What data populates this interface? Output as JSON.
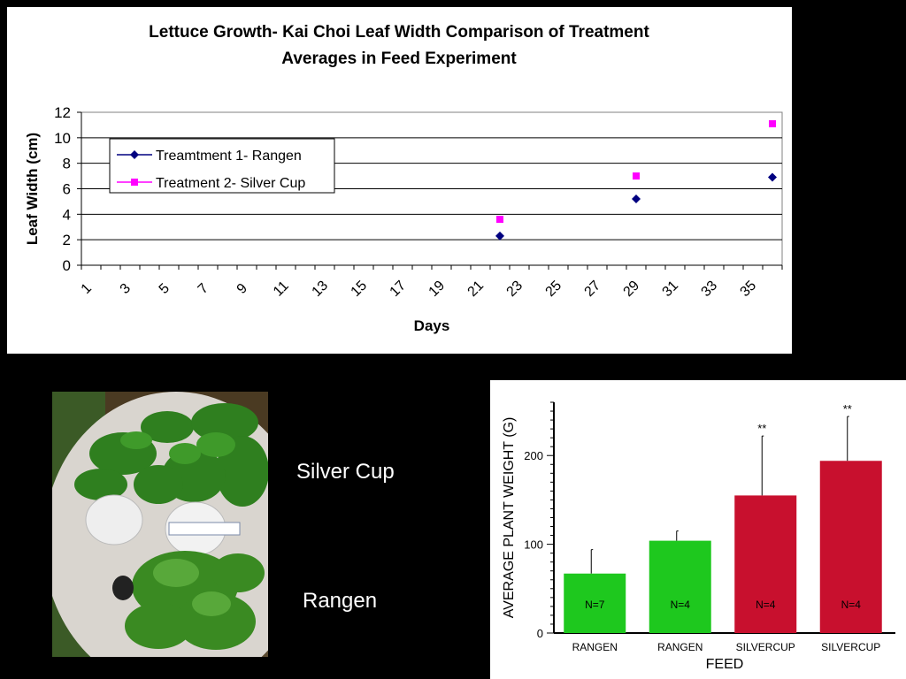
{
  "chart_data": [
    {
      "type": "scatter",
      "title": "Lettuce Growth- Kai Choi Leaf Width Comparison of Treatment Averages in Feed Experiment",
      "title_lines": [
        "Lettuce Growth- Kai Choi Leaf Width Comparison of Treatment",
        "Averages in Feed Experiment"
      ],
      "xlabel": "Days",
      "ylabel": "Leaf Width (cm)",
      "x_tick_labels": [
        "1",
        "3",
        "5",
        "7",
        "9",
        "11",
        "13",
        "15",
        "17",
        "19",
        "21",
        "23",
        "25",
        "27",
        "29",
        "31",
        "33",
        "35"
      ],
      "xlim": [
        1,
        36
      ],
      "ylim": [
        0,
        12
      ],
      "y_ticks": [
        0,
        2,
        4,
        6,
        8,
        10,
        12
      ],
      "grid": true,
      "legend_position": "left",
      "series": [
        {
          "name": "Treamtment 1- Rangen",
          "color": "#000080",
          "marker": "diamond",
          "x": [
            22,
            29,
            36
          ],
          "y": [
            2.3,
            5.2,
            6.9
          ]
        },
        {
          "name": "Treatment 2- Silver Cup",
          "color": "#ff00ff",
          "marker": "square",
          "x": [
            22,
            29,
            36
          ],
          "y": [
            3.6,
            7.0,
            11.1
          ]
        }
      ]
    },
    {
      "type": "bar",
      "xlabel": "FEED",
      "ylabel": "AVERAGE PLANT WEIGHT (G)",
      "ylim": [
        0,
        260
      ],
      "y_ticks": [
        0,
        100,
        200
      ],
      "categories": [
        "RANGEN",
        "RANGEN",
        "SILVERCUP",
        "SILVERCUP"
      ],
      "values": [
        67,
        104,
        155,
        194
      ],
      "error_upper": [
        94,
        115,
        222,
        244
      ],
      "colors": [
        "#1ec81e",
        "#1ec81e",
        "#c8102e",
        "#c8102e"
      ],
      "bar_labels": [
        "N=7",
        "N=4",
        "N=4",
        "N=4"
      ],
      "significance": [
        "",
        "",
        "**",
        "**"
      ]
    }
  ],
  "photo": {
    "description_icon": "lettuce-photo"
  },
  "labels": {
    "silver_cup": "Silver Cup",
    "rangen": "Rangen"
  }
}
